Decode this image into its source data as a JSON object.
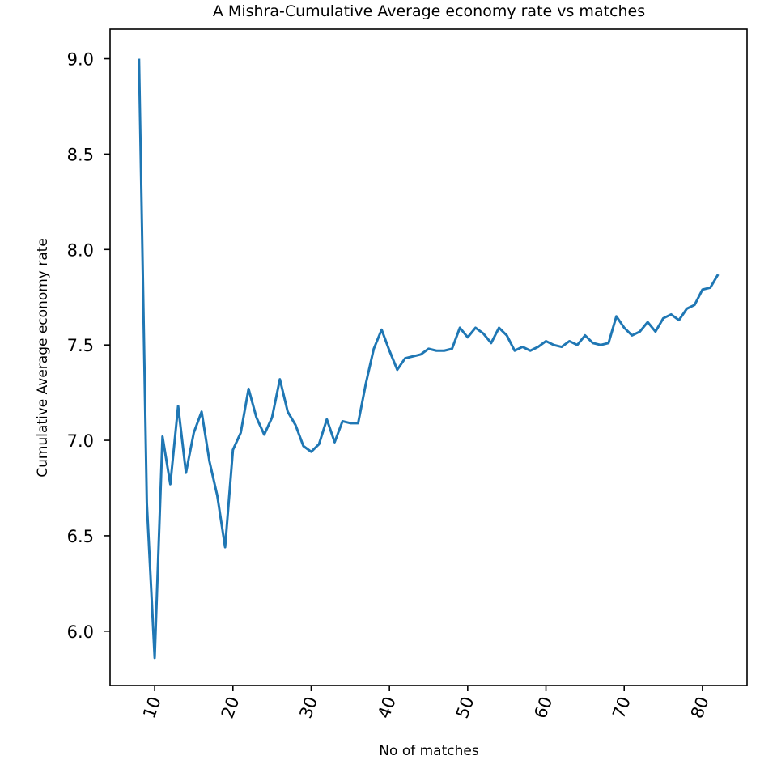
{
  "chart_data": {
    "type": "line",
    "title": "A Mishra-Cumulative Average economy rate vs matches",
    "xlabel": "No of matches",
    "ylabel": "Cumulative Average economy rate",
    "xlim": [
      4.3,
      85.7
    ],
    "ylim": [
      5.715,
      9.155
    ],
    "xticks": [
      10,
      20,
      30,
      40,
      50,
      60,
      70,
      80
    ],
    "yticks": [
      6.0,
      6.5,
      7.0,
      7.5,
      8.0,
      8.5,
      9.0
    ],
    "xtick_labels": [
      "10",
      "20",
      "30",
      "40",
      "50",
      "60",
      "70",
      "80"
    ],
    "ytick_labels": [
      "6.0",
      "6.5",
      "7.0",
      "7.5",
      "8.0",
      "8.5",
      "9.0"
    ],
    "grid": false,
    "line_color": "#1f77b4",
    "x": [
      8,
      9,
      10,
      11,
      12,
      13,
      14,
      15,
      16,
      17,
      18,
      19,
      20,
      21,
      22,
      23,
      24,
      25,
      26,
      27,
      28,
      29,
      30,
      31,
      32,
      33,
      34,
      35,
      36,
      37,
      38,
      39,
      40,
      41,
      42,
      43,
      44,
      45,
      46,
      47,
      48,
      49,
      50,
      51,
      52,
      53,
      54,
      55,
      56,
      57,
      58,
      59,
      60,
      61,
      62,
      63,
      64,
      65,
      66,
      67,
      68,
      69,
      70,
      71,
      72,
      73,
      74,
      75,
      76,
      77,
      78,
      79,
      80,
      81,
      82
    ],
    "y": [
      9.0,
      6.67,
      5.86,
      7.02,
      6.77,
      7.18,
      6.83,
      7.04,
      7.15,
      6.89,
      6.71,
      6.44,
      6.95,
      7.04,
      7.27,
      7.12,
      7.03,
      7.12,
      7.32,
      7.15,
      7.08,
      6.97,
      6.94,
      6.98,
      7.11,
      6.99,
      7.1,
      7.09,
      7.09,
      7.3,
      7.48,
      7.58,
      7.47,
      7.37,
      7.43,
      7.44,
      7.45,
      7.48,
      7.47,
      7.47,
      7.48,
      7.59,
      7.54,
      7.59,
      7.56,
      7.51,
      7.59,
      7.55,
      7.47,
      7.49,
      7.47,
      7.49,
      7.52,
      7.5,
      7.49,
      7.52,
      7.5,
      7.55,
      7.51,
      7.5,
      7.51,
      7.65,
      7.59,
      7.55,
      7.57,
      7.62,
      7.57,
      7.64,
      7.66,
      7.63,
      7.69,
      7.71,
      7.79,
      7.8,
      7.87
    ]
  }
}
